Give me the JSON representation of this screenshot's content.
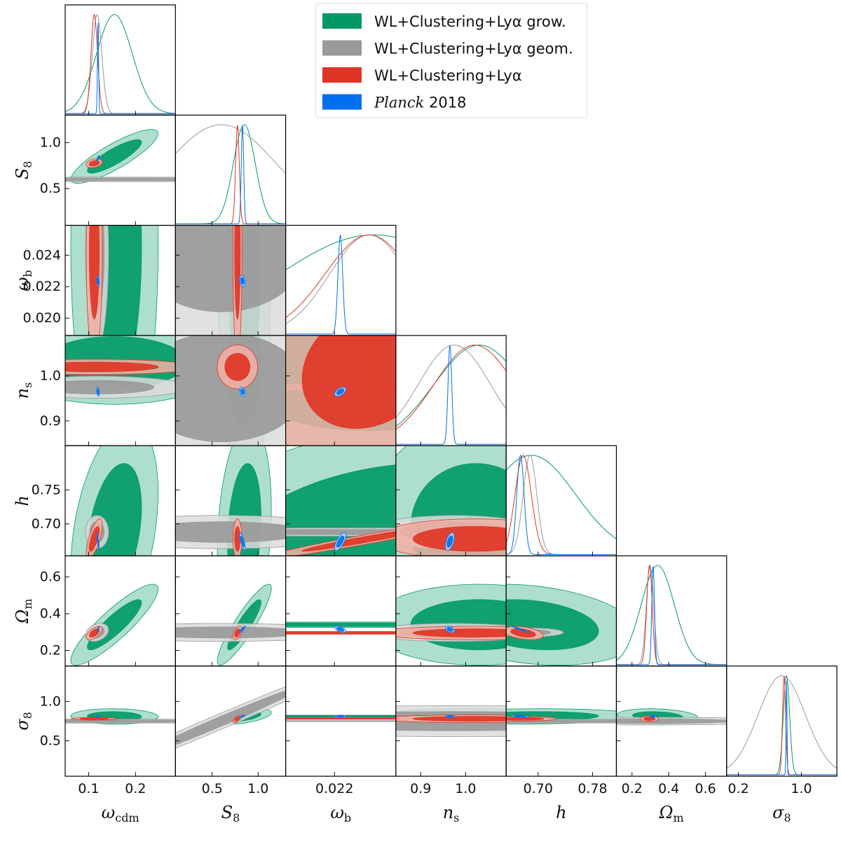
{
  "chart_data": {
    "type": "triangle-corner-plot",
    "parameters": [
      {
        "key": "omega_cdm",
        "base": "ω",
        "sub": "cdm",
        "range": [
          0.05,
          0.285
        ],
        "ticks": [
          0.1,
          0.2
        ],
        "tick_labels": [
          "0.1",
          "0.2"
        ]
      },
      {
        "key": "S8",
        "base": "S",
        "sub": "8",
        "range": [
          0.1,
          1.3
        ],
        "ticks": [
          0.5,
          1.0
        ],
        "tick_labels": [
          "0.5",
          "1.0"
        ]
      },
      {
        "key": "omega_b",
        "base": "ω",
        "sub": "b",
        "range": [
          0.0189,
          0.0259
        ],
        "ticks": [
          0.02,
          0.022,
          0.024
        ],
        "tick_labels": [
          "0.020",
          "0.022",
          "0.024"
        ],
        "x_ticks": [
          0.022
        ],
        "x_tick_labels": [
          "0.022"
        ]
      },
      {
        "key": "n_s",
        "base": "n",
        "sub": "s",
        "range": [
          0.845,
          1.09
        ],
        "ticks": [
          0.9,
          1.0
        ],
        "tick_labels": [
          "0.9",
          "1.0"
        ]
      },
      {
        "key": "h",
        "base": "h",
        "sub": "",
        "range": [
          0.653,
          0.815
        ],
        "ticks": [
          0.7,
          0.75
        ],
        "tick_labels": [
          "0.70",
          "0.75"
        ],
        "x_ticks": [
          0.7,
          0.78
        ],
        "x_tick_labels": [
          "0.70",
          "0.78"
        ]
      },
      {
        "key": "Omega_m",
        "base": "Ω",
        "sub": "m",
        "range": [
          0.115,
          0.715
        ],
        "ticks": [
          0.2,
          0.4,
          0.6
        ],
        "tick_labels": [
          "0.2",
          "0.4",
          "0.6"
        ],
        "x_ticks": [
          0.2,
          0.4,
          0.6
        ],
        "x_tick_labels": [
          "0.2",
          "0.4",
          "0.6"
        ]
      },
      {
        "key": "sigma8",
        "base": "σ",
        "sub": "8",
        "range": [
          0.05,
          1.45
        ],
        "ticks": [
          0.5,
          1.0
        ],
        "tick_labels": [
          "0.5",
          "1.0"
        ],
        "x_ticks": [
          0.2,
          1.0
        ],
        "x_tick_labels": [
          "0.2",
          "1.0"
        ]
      }
    ],
    "legend": [
      {
        "label": "WL+Clustering+Lyα grow.",
        "color": "#009966",
        "italic_prefix": ""
      },
      {
        "label": "WL+Clustering+Lyα geom.",
        "color": "#999999",
        "italic_prefix": ""
      },
      {
        "label": "WL+Clustering+Lyα",
        "color": "#e03424",
        "italic_prefix": ""
      },
      {
        "label": " 2018",
        "color": "#006fed",
        "italic_prefix": "Planck"
      }
    ],
    "series": [
      {
        "name": "WL+Clustering+Lyα grow.",
        "color": "#009966",
        "mean": [
          0.155,
          0.85,
          0.0245,
          1.03,
          0.69,
          0.34,
          0.81
        ],
        "sigma": [
          0.038,
          0.12,
          0.006,
          0.1,
          0.065,
          0.09,
          0.04
        ],
        "corr": [
          [
            1,
            0.85,
            0,
            0,
            0.35,
            0.88,
            -0.05
          ],
          [
            0.85,
            1,
            0,
            0,
            0.2,
            0.9,
            0.5
          ],
          [
            0,
            0,
            1,
            0.05,
            0.35,
            0,
            0
          ],
          [
            0,
            0,
            0.05,
            1,
            -0.05,
            0,
            0
          ],
          [
            0.35,
            0.2,
            0.35,
            -0.05,
            1,
            -0.25,
            0.1
          ],
          [
            0.88,
            0.9,
            0,
            0,
            -0.25,
            1,
            -0.2
          ],
          [
            -0.05,
            0.5,
            0,
            0,
            0.1,
            -0.2,
            1
          ]
        ]
      },
      {
        "name": "WL+Clustering+Lyα geom.",
        "color": "#999999",
        "mean": [
          0.118,
          0.6,
          0.0242,
          0.975,
          0.688,
          0.298,
          0.75
        ],
        "sigma": [
          0.01,
          0.6,
          0.0025,
          0.08,
          0.01,
          0.02,
          0.3
        ],
        "corr": [
          [
            1,
            0,
            0,
            0,
            0,
            0.3,
            0
          ],
          [
            0,
            1,
            0,
            0,
            0,
            0,
            0.99
          ],
          [
            0,
            0,
            1,
            0,
            0,
            0,
            0
          ],
          [
            0,
            0,
            0,
            1,
            0,
            0,
            0
          ],
          [
            0,
            0,
            0,
            0,
            1,
            0,
            0
          ],
          [
            0.3,
            0,
            0,
            0,
            0,
            1,
            0
          ],
          [
            0,
            0.99,
            0,
            0,
            0,
            0,
            1
          ]
        ]
      },
      {
        "name": "WL+Clustering+Lyα",
        "color": "#e03424",
        "mean": [
          0.112,
          0.775,
          0.0242,
          1.02,
          0.678,
          0.295,
          0.78
        ],
        "sigma": [
          0.007,
          0.02,
          0.0028,
          0.09,
          0.012,
          0.015,
          0.02
        ],
        "corr": [
          [
            1,
            0.3,
            0,
            0,
            0.7,
            0.6,
            0
          ],
          [
            0.3,
            1,
            0,
            0,
            0,
            0.5,
            0.7
          ],
          [
            0,
            0,
            1,
            0.2,
            0.97,
            0,
            0
          ],
          [
            0,
            0,
            0.2,
            1,
            0,
            0,
            0
          ],
          [
            0.7,
            0,
            0.97,
            0,
            1,
            -0.4,
            0
          ],
          [
            0.6,
            0.5,
            0,
            0,
            -0.4,
            1,
            0
          ],
          [
            0,
            0.7,
            0,
            0,
            0,
            0,
            1
          ]
        ]
      },
      {
        "name": "Planck 2018",
        "color": "#006fed",
        "mean": [
          0.12,
          0.83,
          0.02237,
          0.965,
          0.674,
          0.315,
          0.811
        ],
        "sigma": [
          0.0012,
          0.013,
          0.00015,
          0.0042,
          0.0054,
          0.0074,
          0.006
        ],
        "corr": [
          [
            1,
            0.8,
            -0.5,
            -0.4,
            -0.9,
            0.95,
            0.5
          ],
          [
            0.8,
            1,
            -0.3,
            -0.3,
            -0.8,
            0.9,
            0.8
          ],
          [
            -0.5,
            -0.3,
            1,
            0.5,
            0.7,
            -0.6,
            -0.1
          ],
          [
            -0.4,
            -0.3,
            0.5,
            1,
            0.5,
            -0.4,
            0.1
          ],
          [
            -0.9,
            -0.8,
            0.7,
            0.5,
            1,
            -0.98,
            -0.4
          ],
          [
            0.95,
            0.9,
            -0.6,
            -0.4,
            -0.98,
            1,
            0.5
          ],
          [
            0.5,
            0.8,
            -0.1,
            0.1,
            -0.4,
            0.5,
            1
          ]
        ]
      }
    ]
  }
}
